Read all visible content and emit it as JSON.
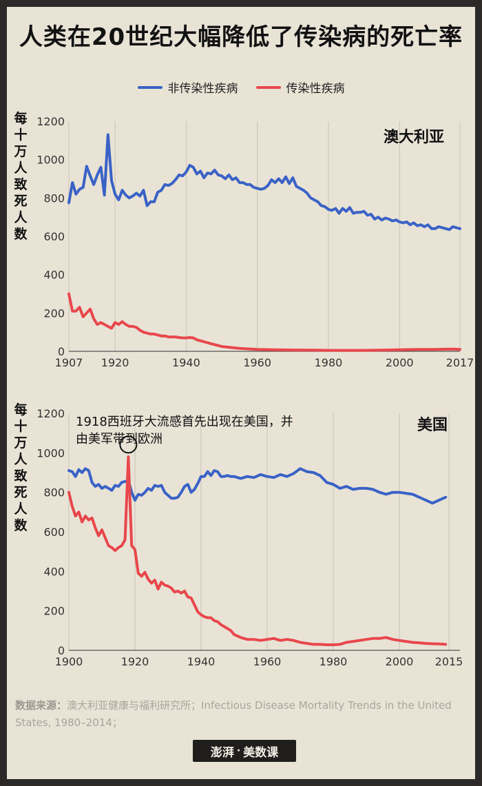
{
  "title": "人类在20世纪大幅降低了传染病的死亡率",
  "legend": {
    "noncommunicable": "非传染性疾病",
    "infectious": "传染性疾病"
  },
  "colors": {
    "noncommunicable": "#3a62c6",
    "infectious": "#e8474c"
  },
  "y_axis_label": "每十万人致死人数",
  "annotation": {
    "line1": "1918西班牙大流感首先出现在美国，并",
    "line2": "由美军带到欧洲"
  },
  "source": {
    "label": "数据来源：",
    "text": "澳大利亚健康与福利研究所；Infectious Disease Mortality Trends in the United States, 1980–2014；"
  },
  "brand": {
    "logo": "澎湃",
    "name": "美数课"
  },
  "chart_data": [
    {
      "type": "line",
      "title": "澳大利亚",
      "xlabel": "",
      "ylabel": "每十万人致死人数",
      "xlim": [
        1907,
        2017
      ],
      "ylim": [
        0,
        1200
      ],
      "xticks": [
        "1907",
        "1920",
        "1940",
        "1960",
        "1980",
        "2000",
        "2017"
      ],
      "yticks": [
        "0",
        "200",
        "400",
        "600",
        "800",
        "1000",
        "1200"
      ],
      "grid": "vertical",
      "series": [
        {
          "name": "非传染性疾病",
          "x": [
            1907,
            1908,
            1909,
            1910,
            1911,
            1912,
            1913,
            1914,
            1915,
            1916,
            1917,
            1918,
            1919,
            1920,
            1921,
            1922,
            1923,
            1924,
            1925,
            1926,
            1927,
            1928,
            1929,
            1930,
            1931,
            1932,
            1933,
            1934,
            1935,
            1936,
            1937,
            1938,
            1939,
            1940,
            1941,
            1942,
            1943,
            1944,
            1945,
            1946,
            1947,
            1948,
            1949,
            1950,
            1951,
            1952,
            1953,
            1954,
            1955,
            1956,
            1957,
            1958,
            1959,
            1960,
            1961,
            1962,
            1963,
            1964,
            1965,
            1966,
            1967,
            1968,
            1969,
            1970,
            1971,
            1972,
            1973,
            1974,
            1975,
            1976,
            1977,
            1978,
            1979,
            1980,
            1981,
            1982,
            1983,
            1984,
            1985,
            1986,
            1987,
            1988,
            1989,
            1990,
            1991,
            1992,
            1993,
            1994,
            1995,
            1996,
            1997,
            1998,
            1999,
            2000,
            2001,
            2002,
            2003,
            2004,
            2005,
            2006,
            2007,
            2008,
            2009,
            2010,
            2011,
            2012,
            2013,
            2014,
            2015,
            2016,
            2017
          ],
          "values": [
            775,
            880,
            820,
            845,
            855,
            965,
            915,
            870,
            920,
            960,
            815,
            1130,
            890,
            820,
            790,
            840,
            815,
            800,
            810,
            825,
            810,
            840,
            760,
            780,
            780,
            830,
            840,
            870,
            865,
            875,
            895,
            920,
            915,
            935,
            970,
            960,
            925,
            940,
            905,
            930,
            925,
            945,
            920,
            915,
            900,
            920,
            895,
            905,
            880,
            880,
            870,
            870,
            855,
            850,
            845,
            850,
            865,
            895,
            880,
            900,
            880,
            910,
            875,
            905,
            860,
            850,
            840,
            825,
            800,
            790,
            780,
            760,
            755,
            740,
            735,
            745,
            720,
            745,
            730,
            750,
            720,
            725,
            725,
            730,
            710,
            715,
            690,
            700,
            685,
            695,
            690,
            680,
            685,
            675,
            670,
            675,
            660,
            670,
            655,
            660,
            650,
            660,
            640,
            640,
            650,
            645,
            640,
            635,
            650,
            645,
            640
          ]
        },
        {
          "name": "传染性疾病",
          "x": [
            1907,
            1908,
            1909,
            1910,
            1911,
            1912,
            1913,
            1914,
            1915,
            1916,
            1917,
            1918,
            1919,
            1920,
            1921,
            1922,
            1923,
            1924,
            1925,
            1926,
            1927,
            1928,
            1929,
            1930,
            1931,
            1932,
            1933,
            1934,
            1935,
            1936,
            1937,
            1938,
            1939,
            1940,
            1941,
            1942,
            1943,
            1944,
            1945,
            1946,
            1947,
            1948,
            1949,
            1950,
            1955,
            1960,
            1965,
            1970,
            1975,
            1980,
            1985,
            1990,
            1995,
            2000,
            2005,
            2010,
            2015,
            2017
          ],
          "values": [
            300,
            210,
            210,
            230,
            180,
            200,
            220,
            170,
            140,
            150,
            140,
            130,
            120,
            150,
            140,
            155,
            140,
            130,
            130,
            125,
            110,
            100,
            95,
            90,
            90,
            85,
            80,
            80,
            75,
            75,
            75,
            72,
            70,
            70,
            72,
            70,
            60,
            55,
            50,
            45,
            40,
            35,
            30,
            25,
            15,
            10,
            8,
            7,
            6,
            5,
            5,
            5,
            6,
            8,
            10,
            10,
            12,
            10
          ]
        }
      ]
    },
    {
      "type": "line",
      "title": "美国",
      "xlabel": "",
      "ylabel": "每十万人致死人数",
      "xlim": [
        1900,
        2015
      ],
      "ylim": [
        0,
        1200
      ],
      "xticks": [
        "1900",
        "1920",
        "1940",
        "1960",
        "1980",
        "2000",
        "2015"
      ],
      "yticks": [
        "0",
        "200",
        "400",
        "600",
        "800",
        "1000",
        "1200"
      ],
      "grid": "vertical",
      "series": [
        {
          "name": "非传染性疾病",
          "x": [
            1900,
            1901,
            1902,
            1903,
            1904,
            1905,
            1906,
            1907,
            1908,
            1909,
            1910,
            1911,
            1912,
            1913,
            1914,
            1915,
            1916,
            1917,
            1918,
            1919,
            1920,
            1921,
            1922,
            1923,
            1924,
            1925,
            1926,
            1927,
            1928,
            1929,
            1930,
            1931,
            1932,
            1933,
            1934,
            1935,
            1936,
            1937,
            1938,
            1939,
            1940,
            1941,
            1942,
            1943,
            1944,
            1945,
            1946,
            1947,
            1948,
            1949,
            1950,
            1952,
            1954,
            1956,
            1958,
            1960,
            1962,
            1964,
            1966,
            1968,
            1970,
            1972,
            1974,
            1976,
            1978,
            1980,
            1982,
            1984,
            1986,
            1988,
            1990,
            1992,
            1994,
            1996,
            1998,
            2000,
            2002,
            2004,
            2006,
            2008,
            2010,
            2012,
            2014
          ],
          "values": [
            910,
            905,
            880,
            915,
            900,
            920,
            910,
            850,
            830,
            840,
            820,
            830,
            820,
            810,
            835,
            830,
            850,
            855,
            860,
            800,
            760,
            790,
            785,
            800,
            820,
            810,
            835,
            830,
            835,
            800,
            785,
            770,
            770,
            775,
            800,
            830,
            840,
            800,
            815,
            845,
            880,
            880,
            905,
            885,
            910,
            905,
            880,
            880,
            885,
            880,
            880,
            870,
            880,
            875,
            890,
            880,
            875,
            890,
            880,
            895,
            920,
            905,
            900,
            885,
            850,
            840,
            820,
            830,
            815,
            820,
            820,
            815,
            800,
            790,
            800,
            800,
            795,
            790,
            775,
            760,
            745,
            760,
            775
          ]
        },
        {
          "name": "传染性疾病",
          "x": [
            1900,
            1901,
            1902,
            1903,
            1904,
            1905,
            1906,
            1907,
            1908,
            1909,
            1910,
            1911,
            1912,
            1913,
            1914,
            1915,
            1916,
            1917,
            1918,
            1919,
            1920,
            1921,
            1922,
            1923,
            1924,
            1925,
            1926,
            1927,
            1928,
            1929,
            1930,
            1931,
            1932,
            1933,
            1934,
            1935,
            1936,
            1937,
            1938,
            1939,
            1940,
            1941,
            1942,
            1943,
            1944,
            1945,
            1946,
            1947,
            1948,
            1949,
            1950,
            1952,
            1954,
            1956,
            1958,
            1960,
            1962,
            1964,
            1966,
            1968,
            1970,
            1972,
            1974,
            1976,
            1978,
            1980,
            1982,
            1984,
            1986,
            1988,
            1990,
            1992,
            1994,
            1996,
            1998,
            2000,
            2002,
            2004,
            2006,
            2008,
            2010,
            2012,
            2014
          ],
          "values": [
            800,
            730,
            680,
            700,
            650,
            680,
            660,
            670,
            620,
            580,
            610,
            570,
            530,
            520,
            505,
            520,
            530,
            560,
            980,
            530,
            510,
            390,
            375,
            395,
            360,
            340,
            355,
            310,
            345,
            330,
            325,
            315,
            295,
            300,
            290,
            300,
            270,
            265,
            230,
            195,
            180,
            170,
            165,
            165,
            150,
            145,
            130,
            120,
            110,
            100,
            80,
            65,
            55,
            55,
            50,
            55,
            60,
            50,
            55,
            50,
            40,
            35,
            30,
            30,
            28,
            28,
            30,
            40,
            45,
            50,
            55,
            60,
            60,
            65,
            55,
            50,
            45,
            40,
            38,
            35,
            33,
            32,
            30
          ]
        }
      ]
    }
  ]
}
